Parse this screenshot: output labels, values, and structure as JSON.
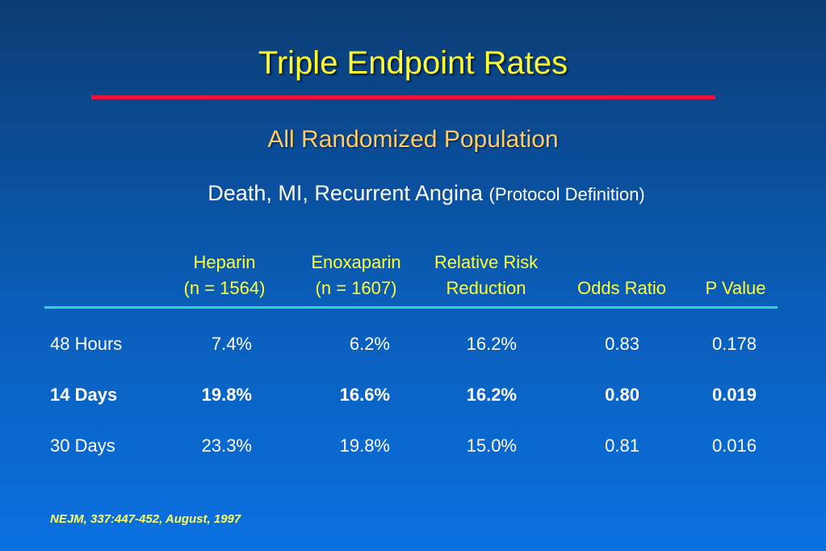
{
  "header": {
    "title": "Triple Endpoint Rates",
    "subtitle": "All Randomized Population",
    "description": "Death, MI, Recurrent Angina",
    "description_note": "(Protocol Definition)"
  },
  "table": {
    "columns": [
      [
        "Heparin",
        "(n = 1564)"
      ],
      [
        "Enoxaparin",
        "(n = 1607)"
      ],
      [
        "Relative Risk",
        "Reduction"
      ],
      [
        "Odds Ratio"
      ],
      [
        "P Value"
      ]
    ],
    "rows": [
      [
        "48 Hours",
        "7.4%",
        "6.2%",
        "16.2%",
        "0.83",
        "0.178"
      ],
      [
        "14 Days",
        "19.8%",
        "16.6%",
        "16.2%",
        "0.80",
        "0.019"
      ],
      [
        "30 Days",
        "23.3%",
        "19.8%",
        "15.0%",
        "0.81",
        "0.016"
      ]
    ]
  },
  "footnote": "NEJM, 337:447-452, August, 1997"
}
